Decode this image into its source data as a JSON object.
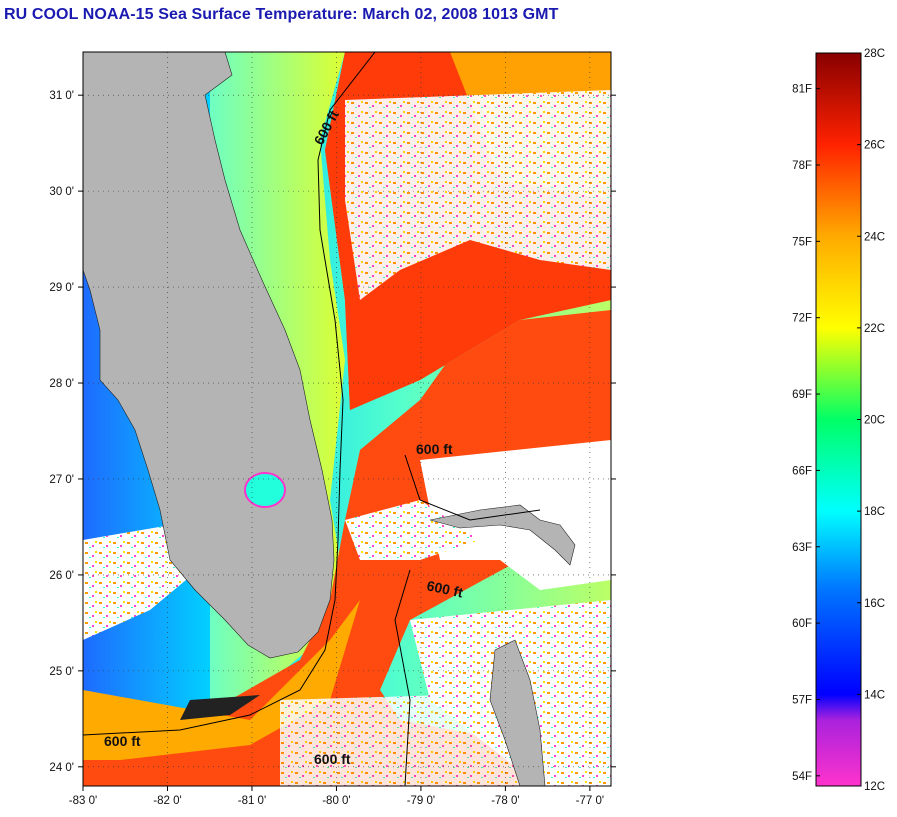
{
  "title": "RU COOL  NOAA-15  Sea Surface Temperature:  March 02, 2008 1013 GMT",
  "map": {
    "lon_range": [
      -83.0,
      -76.75
    ],
    "lat_range": [
      23.8,
      31.45
    ],
    "lat_ticks": [
      "24 0'",
      "25 0'",
      "26 0'",
      "27 0'",
      "28 0'",
      "29 0'",
      "30 0'",
      "31 0'"
    ],
    "lat_values": [
      24,
      25,
      26,
      27,
      28,
      29,
      30,
      31
    ],
    "lon_ticks": [
      "-83 0'",
      "-82 0'",
      "-81 0'",
      "-80 0'",
      "-79 0'",
      "-78 0'",
      "-77 0'"
    ],
    "lon_values": [
      -83,
      -82,
      -81,
      -80,
      -79,
      -78,
      -77
    ],
    "grid": "dotted",
    "contour_labels": [
      "600 ft",
      "600 ft",
      "600 ft",
      "600 ft",
      "600 ft"
    ],
    "land_color": "#b4b4b4",
    "cloud_color": "#ffffff"
  },
  "colorbar": {
    "celsius_labels": [
      "28C",
      "26C",
      "24C",
      "22C",
      "20C",
      "18C",
      "16C",
      "14C",
      "12C"
    ],
    "celsius_values": [
      28,
      26,
      24,
      22,
      20,
      18,
      16,
      14,
      12
    ],
    "fahrenheit_labels": [
      "81F",
      "78F",
      "75F",
      "72F",
      "69F",
      "66F",
      "63F",
      "60F",
      "57F",
      "54F"
    ],
    "fahrenheit_values": [
      81,
      78,
      75,
      72,
      69,
      66,
      63,
      60,
      57,
      54
    ],
    "range_c": [
      12,
      28
    ],
    "colors": [
      "#ff33cc",
      "#8822cc",
      "#0000ff",
      "#00ffff",
      "#00ff66",
      "#ffff00",
      "#ffaa00",
      "#ff3300",
      "#880000"
    ]
  }
}
